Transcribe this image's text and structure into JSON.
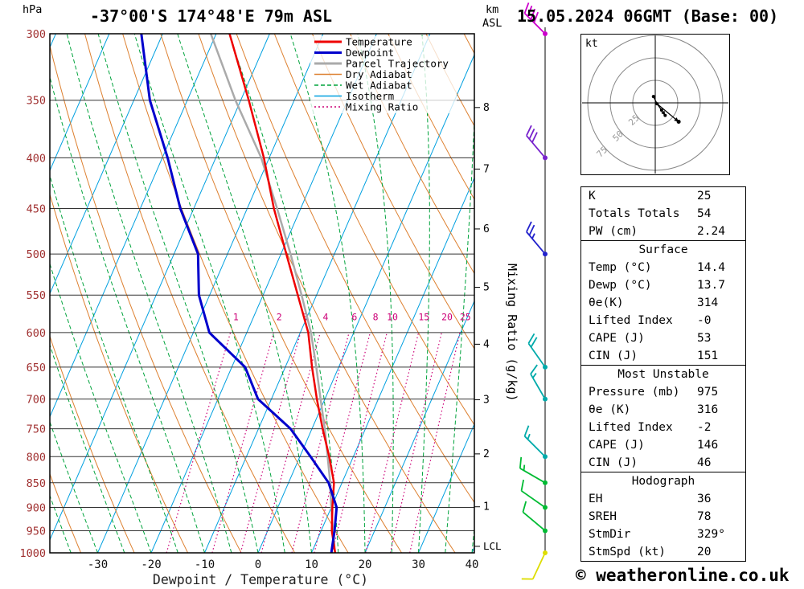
{
  "header": {
    "station": "-37°00'S 174°48'E 79m ASL",
    "datetime": "15.05.2024 06GMT (Base: 00)"
  },
  "footer": {
    "copyright": "© weatheronline.co.uk"
  },
  "axes": {
    "pressure_unit": "hPa",
    "altitude_units": [
      "km",
      "ASL"
    ],
    "pressure_ticks": [
      300,
      350,
      400,
      450,
      500,
      550,
      600,
      650,
      700,
      750,
      800,
      850,
      900,
      950,
      1000
    ],
    "temp_ticks": [
      -30,
      -20,
      -10,
      0,
      10,
      20,
      30,
      40
    ],
    "xlabel": "Dewpoint / Temperature (°C)",
    "km_ticks": [
      8,
      7,
      6,
      5,
      4,
      3,
      2,
      1
    ],
    "lcl_label": "LCL",
    "right_axis_label": "Mixing Ratio (g/kg)"
  },
  "legend": [
    {
      "label": "Temperature",
      "color": "#ee0000",
      "style": "solid"
    },
    {
      "label": "Dewpoint",
      "color": "#0000cc",
      "style": "solid"
    },
    {
      "label": "Parcel Trajectory",
      "color": "#aaaaaa",
      "style": "solid"
    },
    {
      "label": "Dry Adiabat",
      "color": "#dd8030",
      "style": "solid"
    },
    {
      "label": "Wet Adiabat",
      "color": "#00a33c",
      "style": "dashed"
    },
    {
      "label": "Isotherm",
      "color": "#00a0e0",
      "style": "solid"
    },
    {
      "label": "Mixing Ratio",
      "color": "#cc0077",
      "style": "dotted"
    }
  ],
  "chart_data": {
    "type": "skewt-log-p-sounding",
    "pressure_range_hPa": [
      300,
      1000
    ],
    "temp_axis_range_C": [
      -38,
      40
    ],
    "pressure_levels_hPa": [
      1000,
      950,
      900,
      850,
      800,
      750,
      700,
      650,
      600,
      550,
      500,
      450,
      400,
      350,
      300
    ],
    "temperature_C": [
      14.4,
      12.0,
      10.2,
      8.5,
      5.5,
      2.0,
      -1.5,
      -5.0,
      -8.5,
      -13.5,
      -19.0,
      -25.0,
      -31.0,
      -38.5,
      -47.5
    ],
    "dewpoint_C": [
      13.7,
      12.5,
      11.0,
      7.5,
      2.0,
      -4.0,
      -12.5,
      -17.5,
      -27.0,
      -32.0,
      -35.5,
      -42.5,
      -49.0,
      -57.0,
      -64.0
    ],
    "parcel_C": [
      14.4,
      12.2,
      10.0,
      7.8,
      5.2,
      2.4,
      -0.8,
      -4.2,
      -8.0,
      -12.8,
      -18.2,
      -24.4,
      -31.5,
      -41.0,
      -51.0
    ],
    "lcl_pressure_hPa": 985,
    "mixing_ratio_lines_g_per_kg": [
      1,
      2,
      3,
      4,
      6,
      8,
      10,
      15,
      20,
      25
    ],
    "wind_barbs": [
      {
        "p": 300,
        "dir_deg": 315,
        "speed_kt": 40,
        "color": "#cc00cc"
      },
      {
        "p": 400,
        "dir_deg": 320,
        "speed_kt": 30,
        "color": "#7722cc"
      },
      {
        "p": 500,
        "dir_deg": 320,
        "speed_kt": 25,
        "color": "#2222cc"
      },
      {
        "p": 650,
        "dir_deg": 325,
        "speed_kt": 20,
        "color": "#00aaaa"
      },
      {
        "p": 700,
        "dir_deg": 330,
        "speed_kt": 15,
        "color": "#00aaaa"
      },
      {
        "p": 800,
        "dir_deg": 315,
        "speed_kt": 15,
        "color": "#00aaaa"
      },
      {
        "p": 850,
        "dir_deg": 300,
        "speed_kt": 15,
        "color": "#00bb33"
      },
      {
        "p": 900,
        "dir_deg": 305,
        "speed_kt": 10,
        "color": "#00bb33"
      },
      {
        "p": 950,
        "dir_deg": 310,
        "speed_kt": 10,
        "color": "#00bb33"
      },
      {
        "p": 1000,
        "dir_deg": 205,
        "speed_kt": 10,
        "color": "#dddd00"
      }
    ]
  },
  "hodograph": {
    "unit_label": "kt",
    "ring_labels": [
      "25",
      "50",
      "75"
    ],
    "ring_step_kt": 25,
    "trace_uv_kt": [
      [
        -2,
        7
      ],
      [
        2,
        -1
      ],
      [
        7,
        -8
      ],
      [
        11,
        -14
      ]
    ],
    "storm_dot_uv_kt": [
      26,
      -21
    ]
  },
  "table": {
    "sections": [
      {
        "header": null,
        "rows": [
          [
            "K",
            "25"
          ],
          [
            "Totals Totals",
            "54"
          ],
          [
            "PW (cm)",
            "2.24"
          ]
        ]
      },
      {
        "header": "Surface",
        "rows": [
          [
            "Temp (°C)",
            "14.4"
          ],
          [
            "Dewp (°C)",
            "13.7"
          ],
          [
            "θe(K)",
            "314"
          ],
          [
            "Lifted Index",
            "-0"
          ],
          [
            "CAPE (J)",
            "53"
          ],
          [
            "CIN (J)",
            "151"
          ]
        ]
      },
      {
        "header": "Most Unstable",
        "rows": [
          [
            "Pressure (mb)",
            "975"
          ],
          [
            "θe (K)",
            "316"
          ],
          [
            "Lifted Index",
            "-2"
          ],
          [
            "CAPE (J)",
            "146"
          ],
          [
            "CIN (J)",
            "46"
          ]
        ]
      },
      {
        "header": "Hodograph",
        "rows": [
          [
            "EH",
            "36"
          ],
          [
            "SREH",
            "78"
          ],
          [
            "StmDir",
            "329°"
          ],
          [
            "StmSpd (kt)",
            "20"
          ]
        ]
      }
    ]
  },
  "colors": {
    "temperature": "#ee0000",
    "dewpoint": "#0000cc",
    "parcel": "#aaaaaa",
    "dry_adiabat": "#dd8030",
    "wet_adiabat": "#00a33c",
    "isotherm": "#00a0e0",
    "mixing_ratio": "#cc0077",
    "grid": "#333333",
    "pressure_label": "#a03030",
    "frame": "#000000"
  }
}
